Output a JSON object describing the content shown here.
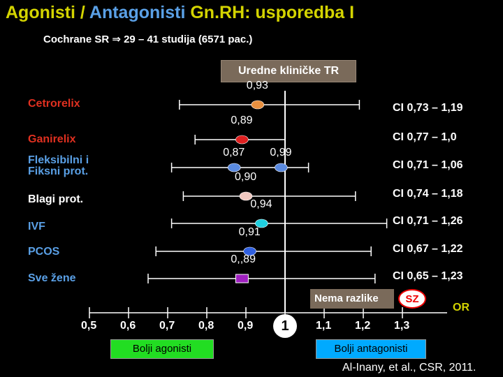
{
  "title": {
    "part1": "Agonisti / ",
    "part2": "Antagonisti",
    "part3": " Gn.RH: usporedba I"
  },
  "subtitle": "Cochrane SR ⇒ 29 – 41 studija (6571 pac.)",
  "header_box": "Uredne kliničke TR",
  "no_diff_label": "Nema razlike",
  "sz_label": "SZ",
  "agonist_label": "Bolji agonisti",
  "antagonist_label": "Bolji antagonisti",
  "citation": "Al-Inany, et al., CSR, 2011.",
  "colors": {
    "line": "#ffffff",
    "label_red": "#e03020",
    "label_blue": "#5aa0e6",
    "label_white": "#ffffff"
  },
  "chart_data": {
    "type": "forest",
    "xlabel": "OR",
    "xticks": [
      {
        "value": 0.5,
        "label": "0,5"
      },
      {
        "value": 0.6,
        "label": "0,6"
      },
      {
        "value": 0.7,
        "label": "0,7"
      },
      {
        "value": 0.8,
        "label": "0,8"
      },
      {
        "value": 0.9,
        "label": "0,9"
      },
      {
        "value": 1.0,
        "label": "1"
      },
      {
        "value": 1.1,
        "label": "1,1"
      },
      {
        "value": 1.2,
        "label": "1,2"
      },
      {
        "value": 1.3,
        "label": "1,3"
      }
    ],
    "rows": [
      {
        "name": "Cetrorelix",
        "label_color": "#e03020",
        "points": [
          {
            "or": 0.93,
            "label": "0,93",
            "color": "#e89040"
          }
        ],
        "ci_low": 0.73,
        "ci_high": 1.19,
        "ci_label": "CI 0,73 – 1,19",
        "shape": "ellipse"
      },
      {
        "name": "Ganirelix",
        "label_color": "#e03020",
        "points": [
          {
            "or": 0.89,
            "label": "0,89",
            "color": "#e02020"
          }
        ],
        "ci_low": 0.77,
        "ci_high": 1.0,
        "ci_label": "CI 0,77 – 1,0",
        "shape": "ellipse"
      },
      {
        "name": "Fleksibilni i Fiksni prot.",
        "label_color": "#5aa0e6",
        "points": [
          {
            "or": 0.87,
            "label": "0,87",
            "color": "#5a8ae0"
          },
          {
            "or": 0.99,
            "label": "0,99",
            "color": "#5a8ae0"
          }
        ],
        "ci_low": 0.71,
        "ci_high": 1.06,
        "ci_label": "CI 0,71 – 1,06",
        "shape": "ellipse"
      },
      {
        "name": "Blagi prot.",
        "label_color": "#ffffff",
        "points": [
          {
            "or": 0.9,
            "label": "0,90",
            "color": "#f0c8c0"
          }
        ],
        "ci_low": 0.74,
        "ci_high": 1.18,
        "ci_label": "CI 0,74 – 1,18",
        "shape": "ellipse"
      },
      {
        "name": "IVF",
        "label_color": "#5aa0e6",
        "points": [
          {
            "or": 0.94,
            "label": "0,94",
            "color": "#20d0e0"
          }
        ],
        "ci_low": 0.71,
        "ci_high": 1.26,
        "ci_label": "CI 0,71 – 1,26",
        "shape": "ellipse"
      },
      {
        "name": "PCOS",
        "label_color": "#5aa0e6",
        "points": [
          {
            "or": 0.91,
            "label": "0,91",
            "color": "#3060e0"
          }
        ],
        "ci_low": 0.67,
        "ci_high": 1.22,
        "ci_label": "CI 0,67 – 1,22",
        "shape": "ellipse"
      },
      {
        "name": "Sve žene",
        "label_color": "#5aa0e6",
        "points": [
          {
            "or": 0.89,
            "label": "0,,89",
            "color": "#a020c0"
          }
        ],
        "ci_low": 0.65,
        "ci_high": 1.23,
        "ci_label": "CI 0,65 – 1,23",
        "shape": "square"
      }
    ]
  }
}
